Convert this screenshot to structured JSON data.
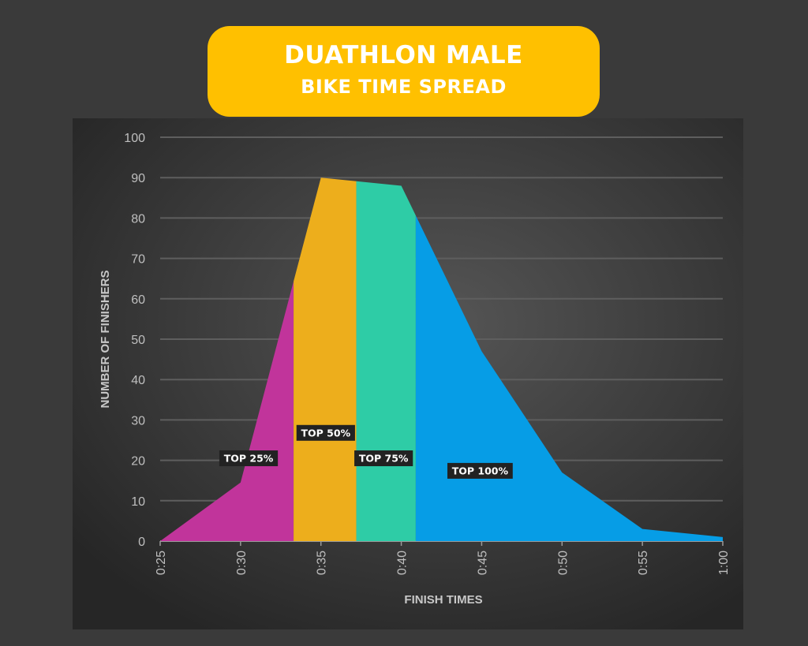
{
  "title": {
    "line1": "DUATHLON MALE",
    "line2": "BIKE TIME SPREAD"
  },
  "chart_data": {
    "type": "area",
    "xlabel": "FINISH TIMES",
    "ylabel": "NUMBER OF FINISHERS",
    "x_ticks": [
      "0:25",
      "0:30",
      "0:35",
      "0:40",
      "0:45",
      "0:50",
      "0:55",
      "1:00"
    ],
    "x_minutes": [
      25,
      30,
      35,
      40,
      45,
      50,
      55,
      60
    ],
    "values": [
      0,
      14.5,
      90,
      88,
      47,
      17,
      3,
      1
    ],
    "ylim": [
      0,
      100
    ],
    "y_ticks": [
      0,
      10,
      20,
      30,
      40,
      50,
      60,
      70,
      80,
      90,
      100
    ],
    "grid": true,
    "segments": [
      {
        "label": "TOP 25%",
        "from": 25,
        "to": 33.3,
        "color": "#c1349b",
        "label_x": 30.5,
        "label_y": 20.5
      },
      {
        "label": "TOP 50%",
        "from": 33.3,
        "to": 37.2,
        "color": "#edae1c",
        "label_x": 35.3,
        "label_y": 26.8
      },
      {
        "label": "TOP 75%",
        "from": 37.2,
        "to": 40.9,
        "color": "#2ecca6",
        "label_x": 38.9,
        "label_y": 20.5
      },
      {
        "label": "TOP 100%",
        "from": 40.9,
        "to": 60,
        "color": "#069de6",
        "label_x": 44.9,
        "label_y": 17.4
      }
    ],
    "background": "#3a3a3a",
    "title_color": "#ffc000"
  }
}
